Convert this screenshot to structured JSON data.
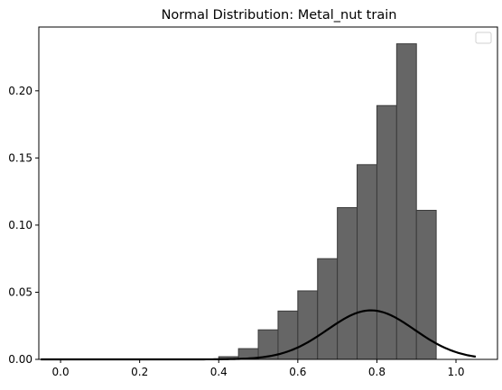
{
  "chart_data": {
    "type": "bar",
    "title": "Normal Distribution: Metal_nut train",
    "xlabel": "",
    "ylabel": "",
    "xlim": [
      -0.055,
      1.105
    ],
    "ylim": [
      0,
      0.2475
    ],
    "xticks": [
      0.0,
      0.2,
      0.4,
      0.6,
      0.8,
      1.0
    ],
    "xtick_labels": [
      "0.0",
      "0.2",
      "0.4",
      "0.6",
      "0.8",
      "1.0"
    ],
    "yticks": [
      0.0,
      0.05,
      0.1,
      0.15,
      0.2
    ],
    "ytick_labels": [
      "0.00",
      "0.05",
      "0.10",
      "0.15",
      "0.20"
    ],
    "legend": {
      "placement": "top-right",
      "entries": []
    },
    "histogram": {
      "bin_edges": [
        0.4,
        0.45,
        0.5,
        0.55,
        0.6,
        0.65,
        0.7,
        0.75,
        0.8,
        0.85,
        0.9,
        0.95
      ],
      "values": [
        0.002,
        0.008,
        0.022,
        0.036,
        0.051,
        0.075,
        0.113,
        0.145,
        0.189,
        0.235,
        0.111
      ],
      "color": "#666666",
      "edge_color": "#3a3a3a"
    },
    "normal_curve": {
      "mean": 0.785,
      "std": 0.11,
      "peak": 0.0365,
      "x_range": [
        -0.05,
        1.05
      ],
      "color": "#000000"
    }
  }
}
